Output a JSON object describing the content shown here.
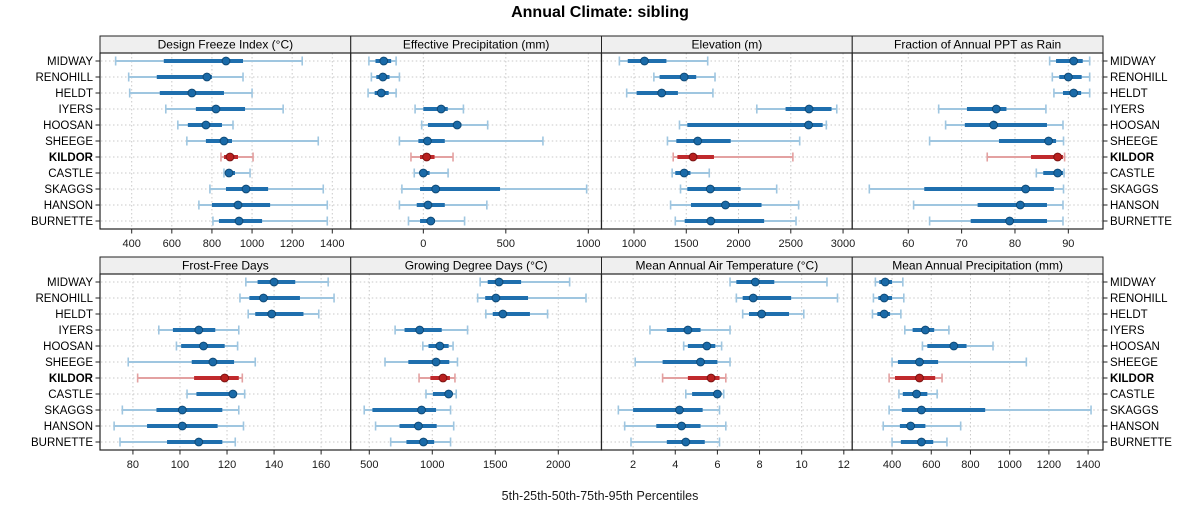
{
  "colors": {
    "normal": "#1f6fae",
    "normal_light": "#9fc6e0",
    "normal_dot": "#1a6aa8",
    "normal_dot_edge": "#0f4a77",
    "highlight": "#c02a2d",
    "highlight_light": "#e3a1a1",
    "highlight_dot": "#b9201f",
    "highlight_dot_edge": "#7c1312",
    "grid": "#c9c9c9",
    "strip_bg": "#efefef",
    "border": "#222222"
  },
  "chart_data": {
    "type": "dotplot-percentiles",
    "title": "Annual Climate: sibling",
    "caption": "5th-25th-50th-75th-95th Percentiles",
    "percentiles": [
      "5th",
      "25th",
      "50th",
      "75th",
      "95th"
    ],
    "legend_position": "none",
    "grid": "dotted",
    "stations": [
      "MIDWAY",
      "RENOHILL",
      "HELDT",
      "IYERS",
      "HOOSAN",
      "SHEEGE",
      "KILDOR",
      "CASTLE",
      "SKAGGS",
      "HANSON",
      "BURNETTE"
    ],
    "highlighted_station": "KILDOR",
    "panels": [
      {
        "title": "Design Freeze Index (°C)",
        "row": 0,
        "col": 0,
        "ticks": [
          400,
          600,
          800,
          1000,
          1200,
          1400
        ],
        "domain": [
          242,
          1492
        ],
        "values": [
          [
            320,
            560,
            870,
            955,
            1250
          ],
          [
            385,
            525,
            775,
            800,
            955
          ],
          [
            390,
            540,
            700,
            860,
            1000
          ],
          [
            570,
            720,
            820,
            965,
            1155
          ],
          [
            630,
            680,
            770,
            850,
            905
          ],
          [
            675,
            770,
            860,
            900,
            1330
          ],
          [
            845,
            860,
            890,
            930,
            1005
          ],
          [
            860,
            870,
            885,
            915,
            990
          ],
          [
            790,
            870,
            970,
            1080,
            1355
          ],
          [
            735,
            800,
            930,
            1090,
            1375
          ],
          [
            805,
            835,
            935,
            1050,
            1375
          ]
        ]
      },
      {
        "title": "Effective Precipitation (mm)",
        "row": 0,
        "col": 1,
        "ticks": [
          0,
          500,
          1000
        ],
        "domain": [
          -440,
          1080
        ],
        "values": [
          [
            -330,
            -290,
            -240,
            -195,
            -165
          ],
          [
            -315,
            -285,
            -245,
            -205,
            -145
          ],
          [
            -335,
            -295,
            -255,
            -210,
            -165
          ],
          [
            -50,
            0,
            108,
            148,
            243
          ],
          [
            -10,
            28,
            205,
            230,
            390
          ],
          [
            -145,
            -30,
            25,
            130,
            725
          ],
          [
            -75,
            -20,
            20,
            68,
            180
          ],
          [
            -55,
            -20,
            0,
            38,
            150
          ],
          [
            -130,
            -20,
            75,
            465,
            990
          ],
          [
            -145,
            -40,
            28,
            130,
            385
          ],
          [
            -90,
            -20,
            45,
            70,
            250
          ]
        ]
      },
      {
        "title": "Elevation (m)",
        "row": 0,
        "col": 2,
        "ticks": [
          1000,
          1500,
          2000,
          2500,
          3000
        ],
        "domain": [
          689,
          3088
        ],
        "values": [
          [
            860,
            940,
            1100,
            1310,
            1705
          ],
          [
            1190,
            1245,
            1480,
            1595,
            1775
          ],
          [
            930,
            1025,
            1265,
            1420,
            1755
          ],
          [
            2175,
            2450,
            2675,
            2890,
            2940
          ],
          [
            1435,
            1510,
            2670,
            2805,
            2840
          ],
          [
            1320,
            1405,
            1610,
            1925,
            2585
          ],
          [
            1375,
            1415,
            1565,
            1765,
            2520
          ],
          [
            1365,
            1395,
            1480,
            1540,
            1720
          ],
          [
            1445,
            1510,
            1730,
            2020,
            2365
          ],
          [
            1350,
            1545,
            1875,
            2220,
            2575
          ],
          [
            1395,
            1485,
            1735,
            2245,
            2550
          ]
        ]
      },
      {
        "title": "Fraction of Annual PPT as Rain",
        "row": 0,
        "col": 3,
        "ticks": [
          60,
          70,
          80,
          90
        ],
        "domain": [
          49.5,
          96.5
        ],
        "values": [
          [
            86.5,
            87.7,
            91,
            92.7,
            94
          ],
          [
            87,
            88.3,
            90,
            92.5,
            94
          ],
          [
            87.3,
            89,
            91,
            92.4,
            94
          ],
          [
            65.7,
            71,
            76.5,
            78.4,
            85.8
          ],
          [
            67,
            70.6,
            76,
            86,
            89
          ],
          [
            64,
            77,
            86.3,
            87.7,
            89.1
          ],
          [
            74.8,
            83,
            88,
            89,
            89.3
          ],
          [
            84,
            85.3,
            88,
            89,
            89.2
          ],
          [
            52.7,
            63,
            82,
            87.3,
            89.1
          ],
          [
            61,
            73,
            81,
            86,
            89
          ],
          [
            64,
            71.7,
            79,
            86,
            89
          ]
        ]
      },
      {
        "title": "Frost-Free Days",
        "row": 1,
        "col": 0,
        "ticks": [
          80,
          100,
          120,
          140,
          160
        ],
        "domain": [
          66,
          172.6
        ],
        "values": [
          [
            128,
            133,
            140,
            149,
            163
          ],
          [
            125.5,
            129.5,
            135.5,
            151,
            165.5
          ],
          [
            129,
            132,
            139,
            152.5,
            159
          ],
          [
            91,
            97,
            108,
            115,
            125
          ],
          [
            98.5,
            100.5,
            110,
            119,
            124.5
          ],
          [
            78,
            105,
            114,
            123,
            132
          ],
          [
            82,
            106,
            119,
            125,
            126.5
          ],
          [
            103,
            107,
            122.5,
            124,
            127.5
          ],
          [
            75.5,
            90,
            101,
            118,
            125
          ],
          [
            72,
            86,
            101,
            116,
            127
          ],
          [
            74.5,
            94.5,
            108,
            118,
            123.5
          ]
        ]
      },
      {
        "title": "Growing Degree Days (°C)",
        "row": 1,
        "col": 1,
        "ticks": [
          500,
          1000,
          1500,
          2000
        ],
        "domain": [
          353,
          2343
        ],
        "values": [
          [
            1380,
            1440,
            1530,
            1705,
            2090
          ],
          [
            1360,
            1420,
            1505,
            1760,
            2220
          ],
          [
            1425,
            1480,
            1560,
            1775,
            1915
          ],
          [
            705,
            780,
            900,
            1075,
            1280
          ],
          [
            925,
            970,
            1060,
            1130,
            1165
          ],
          [
            625,
            810,
            1030,
            1135,
            1200
          ],
          [
            895,
            985,
            1085,
            1140,
            1180
          ],
          [
            950,
            1005,
            1130,
            1160,
            1190
          ],
          [
            460,
            525,
            915,
            1030,
            1145
          ],
          [
            550,
            740,
            890,
            1035,
            1170
          ],
          [
            670,
            795,
            930,
            1015,
            1145
          ]
        ]
      },
      {
        "title": "Mean Annual Air Temperature (°C)",
        "row": 1,
        "col": 2,
        "ticks": [
          2,
          4,
          6,
          8,
          10,
          12
        ],
        "domain": [
          0.5,
          12.4
        ],
        "values": [
          [
            6.6,
            6.9,
            7.8,
            8.7,
            11.2
          ],
          [
            6.9,
            7.2,
            7.7,
            9.5,
            11.7
          ],
          [
            7.2,
            7.5,
            8.1,
            9.4,
            10.1
          ],
          [
            2.8,
            3.6,
            4.6,
            5.2,
            6.6
          ],
          [
            4.4,
            4.6,
            5.5,
            5.9,
            6.2
          ],
          [
            2.1,
            3.4,
            5.2,
            6.0,
            6.6
          ],
          [
            3.4,
            4.6,
            5.7,
            6.1,
            6.4
          ],
          [
            4.5,
            4.8,
            6.0,
            6.15,
            6.3
          ],
          [
            1.3,
            2.0,
            4.2,
            5.3,
            6.1
          ],
          [
            1.6,
            3.1,
            4.3,
            5.2,
            6.4
          ],
          [
            1.9,
            3.6,
            4.5,
            5.4,
            6.1
          ]
        ]
      },
      {
        "title": "Mean Annual Precipitation (mm)",
        "row": 1,
        "col": 3,
        "ticks": [
          400,
          600,
          800,
          1000,
          1200,
          1400
        ],
        "domain": [
          197,
          1476
        ],
        "values": [
          [
            315,
            335,
            365,
            400,
            455
          ],
          [
            305,
            330,
            360,
            400,
            460
          ],
          [
            300,
            325,
            360,
            390,
            445
          ],
          [
            465,
            505,
            570,
            615,
            690
          ],
          [
            555,
            580,
            715,
            780,
            915
          ],
          [
            400,
            430,
            540,
            635,
            1085
          ],
          [
            385,
            415,
            540,
            620,
            655
          ],
          [
            435,
            455,
            525,
            580,
            630
          ],
          [
            385,
            450,
            550,
            875,
            1415
          ],
          [
            355,
            440,
            495,
            570,
            750
          ],
          [
            400,
            445,
            550,
            610,
            680
          ]
        ]
      }
    ]
  }
}
